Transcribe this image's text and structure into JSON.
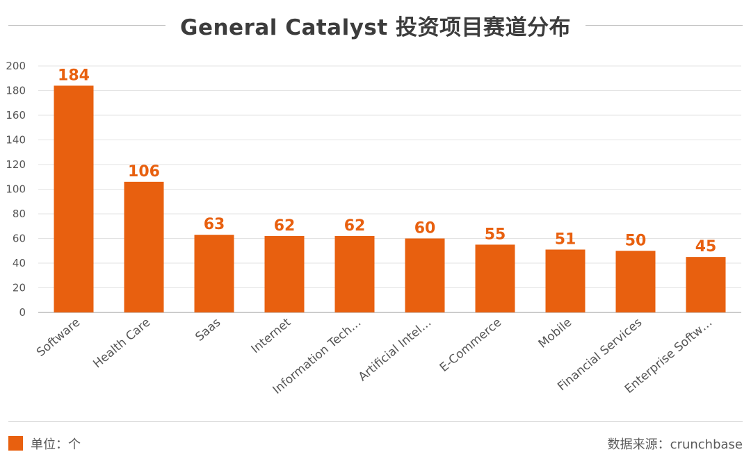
{
  "title": "General Catalyst 投资项目赛道分布",
  "legend_label": "单位：个",
  "source": "数据来源：crunchbase",
  "chart_data": {
    "type": "bar",
    "title": "General Catalyst 投资项目赛道分布",
    "categories": [
      "Software",
      "Health Care",
      "Saas",
      "Internet",
      "Information Tech…",
      "Artificial Intel…",
      "E-Commerce",
      "Mobile",
      "Financial Services",
      "Enterprise Softw…"
    ],
    "values": [
      184,
      106,
      63,
      62,
      62,
      60,
      55,
      51,
      50,
      45
    ],
    "ylim": [
      0,
      200
    ],
    "yticks": [
      0,
      20,
      40,
      60,
      80,
      100,
      120,
      140,
      160,
      180,
      200
    ],
    "bar_color": "#e8600f",
    "label_color": "#e8600f",
    "grid": true,
    "legend_position": "bottom-left"
  }
}
